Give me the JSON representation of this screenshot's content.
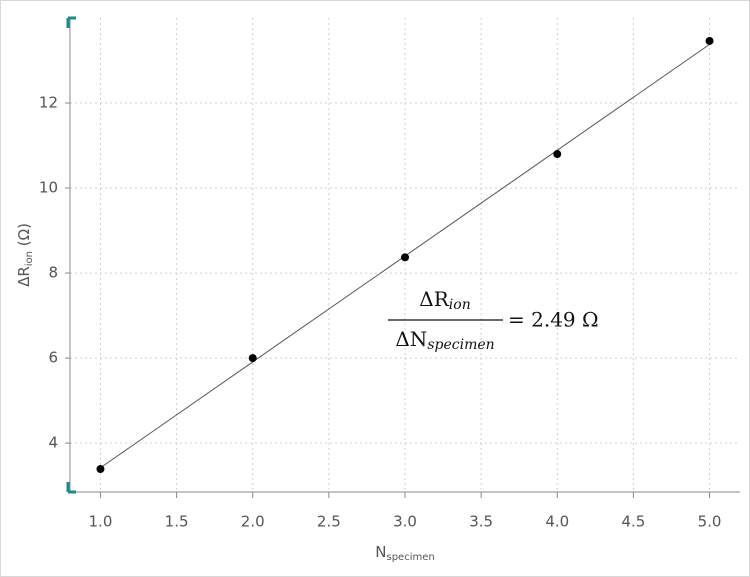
{
  "chart_data": {
    "type": "scatter",
    "x_label": {
      "main": "N",
      "sub": "specimen"
    },
    "y_label": {
      "main": "ΔR",
      "sub": "ion",
      "unit": " (Ω)"
    },
    "x": [
      1,
      2,
      3,
      4,
      5
    ],
    "values": [
      3.39,
      6.0,
      8.37,
      10.8,
      13.46
    ],
    "color": "#000000",
    "fit_line": {
      "x": [
        1,
        5
      ],
      "values": [
        3.42,
        13.38
      ],
      "color": "#555555"
    },
    "annotation": {
      "numerator": "ΔR",
      "numerator_sub": "ion",
      "denominator": "ΔN",
      "denominator_sub": "specimen",
      "equals": "= 2.49 Ω"
    },
    "xlim": [
      0.8,
      5.2
    ],
    "ylim": [
      2.85,
      14.0
    ],
    "xticks": [
      {
        "value": 1,
        "label": "1.0"
      },
      1.5,
      {
        "value": 2,
        "label": "2.0"
      },
      2.5,
      {
        "value": 3,
        "label": "3.0"
      },
      3.5,
      {
        "value": 4,
        "label": "4.0"
      },
      4.5,
      {
        "value": 5,
        "label": "5.0"
      }
    ],
    "yticks": [
      4,
      6,
      8,
      10,
      12
    ],
    "grid": true
  }
}
